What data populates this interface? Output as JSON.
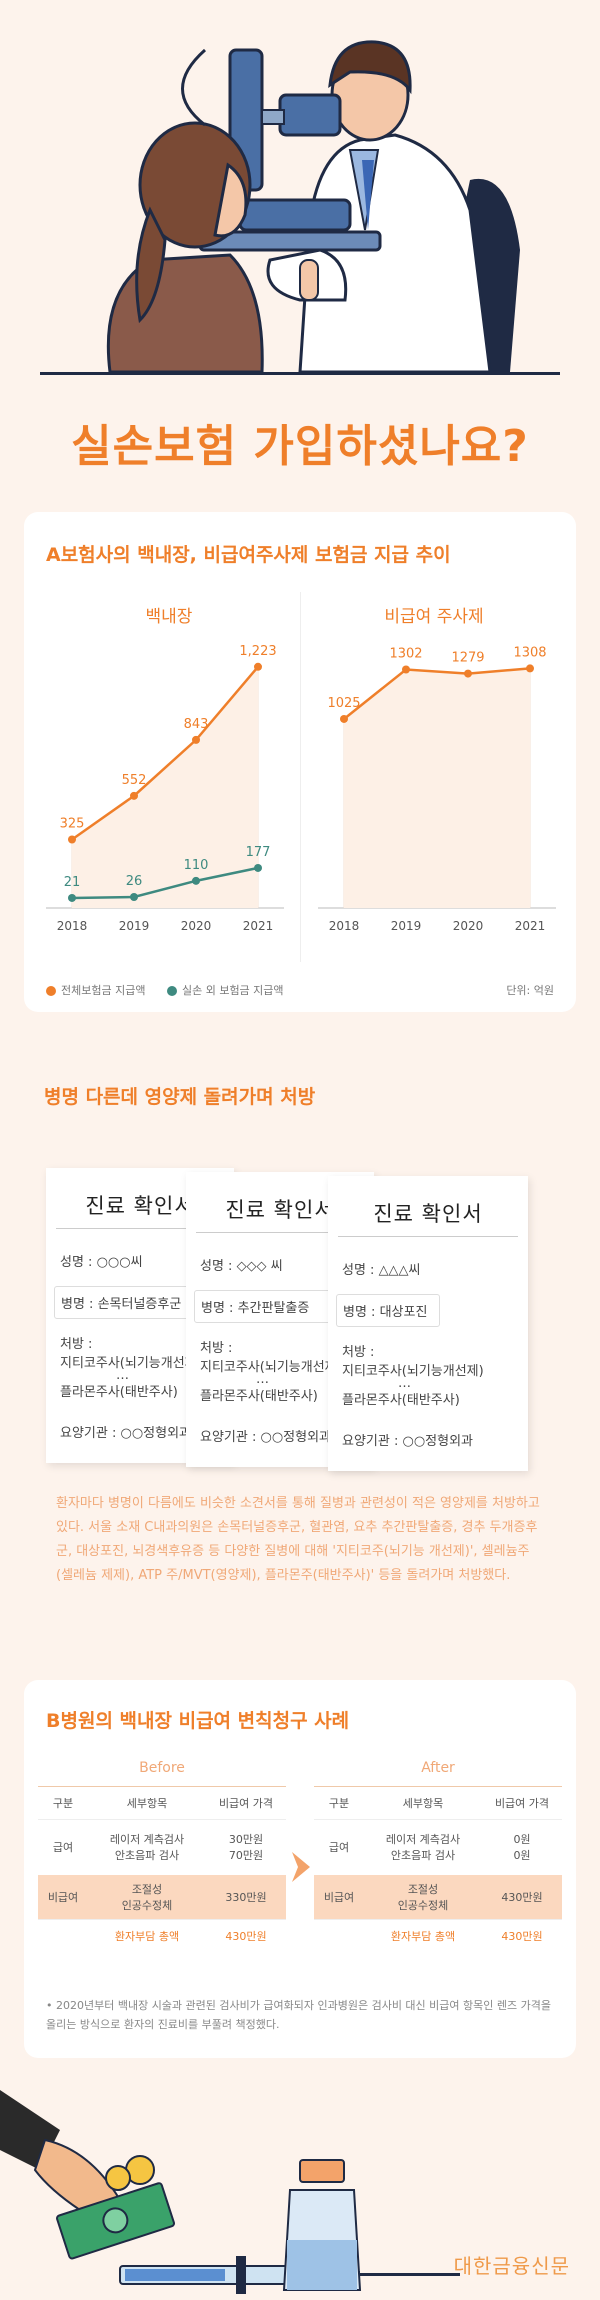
{
  "headline": "실손보험 가입하셨나요?",
  "card1": {
    "title": "A보험사의 백내장, 비급여주사제 보험금 지급 추이",
    "legend": {
      "total": "전체보험금 지급액",
      "other": "실손 외 보험금 지급액",
      "unit": "단위: 억원"
    }
  },
  "chart_data": [
    {
      "type": "line",
      "title": "백내장",
      "x": [
        "2018",
        "2019",
        "2020",
        "2021"
      ],
      "series": [
        {
          "name": "전체보험금 지급액",
          "values": [
            325,
            552,
            843,
            1223
          ],
          "labels": [
            "325",
            "552",
            "843",
            "1,223"
          ],
          "color": "#ef7f2a"
        },
        {
          "name": "실손 외 보험금 지급액",
          "values": [
            21,
            26,
            110,
            177
          ],
          "labels": [
            "21",
            "26",
            "110",
            "177"
          ],
          "color": "#3e8a80"
        }
      ],
      "ylim": [
        0,
        1300
      ],
      "grid": false
    },
    {
      "type": "line",
      "title": "비급여 주사제",
      "x": [
        "2018",
        "2019",
        "2020",
        "2021"
      ],
      "series": [
        {
          "name": "전체보험금 지급액",
          "values": [
            1025,
            1302,
            1279,
            1308
          ],
          "labels": [
            "1025",
            "1302",
            "1279",
            "1308"
          ],
          "color": "#ef7f2a"
        }
      ],
      "ylim": [
        0,
        1400
      ],
      "grid": false
    }
  ],
  "sec2": {
    "title": "병명 다른데 영양제 돌려가며 처방",
    "docs": [
      {
        "title": "진료 확인서",
        "name": "성명 : ○○○씨",
        "diag": "병명 : 손목터널증후군",
        "rx": "처방 :",
        "rx1": "지티코주사(뇌기능개선제)",
        "dots": "…",
        "rx2": "플라몬주사(태반주사)",
        "inst": "요양기관 : ○○정형외과"
      },
      {
        "title": "진료 확인서",
        "name": "성명 : ◇◇◇ 씨",
        "diag": "병명 : 추간판탈출증",
        "rx": "처방 :",
        "rx1": "지티코주사(뇌기능개선제)",
        "dots": "…",
        "rx2": "플라몬주사(태반주사)",
        "inst": "요양기관 : ○○정형외과"
      },
      {
        "title": "진료 확인서",
        "name": "성명 : △△△씨",
        "diag": "병명 : 대상포진",
        "rx": "처방 :",
        "rx1": "지티코주사(뇌기능개선제)",
        "dots": "…",
        "rx2": "플라몬주사(태반주사)",
        "inst": "요양기관 : ○○정형외과"
      }
    ],
    "paragraph": "환자마다 병명이 다름에도 비슷한 소견서를 통해 질병과 관련성이 적은 영양제를 처방하고 있다. 서울 소재 C내과의원은 손목터널증후군, 혈관염, 요추 추간판탈출증, 경추 두개증후군, 대상포진, 뇌경색후유증 등 다양한 질병에 대해 '지티코주(뇌기능 개선제)', 셀레늄주(셀레늄 제제), ATP 주/MVT(영양제), 플라몬주(태반주사)' 등을 돌려가며 처방했다."
  },
  "card3": {
    "title": "B병원의 백내장 비급여 변칙청구 사례",
    "before": {
      "label": "Before",
      "headers": [
        "구분",
        "세부항목",
        "비급여 가격"
      ],
      "rows": [
        {
          "cat": "급여",
          "items": [
            "레이저 계측검사",
            "안초음파 검사"
          ],
          "prices": [
            "30만원",
            "70만원"
          ]
        },
        {
          "cat": "비급여",
          "items": [
            "조절성",
            "인공수정체"
          ],
          "prices": [
            "330만원"
          ]
        }
      ],
      "total_label": "환자부담 총액",
      "total": "430만원"
    },
    "after": {
      "label": "After",
      "headers": [
        "구분",
        "세부항목",
        "비급여 가격"
      ],
      "rows": [
        {
          "cat": "급여",
          "items": [
            "레이저 계측검사",
            "안초음파 검사"
          ],
          "prices": [
            "0원",
            "0원"
          ]
        },
        {
          "cat": "비급여",
          "items": [
            "조절성",
            "인공수정체"
          ],
          "prices": [
            "430만원"
          ]
        }
      ],
      "total_label": "환자부담 총액",
      "total": "430만원"
    },
    "footnote": "• 2020년부터 백내장 시술과 관련된 검사비가 급여화되자 인과병원은 검사비 대신 비급여 항목인 렌즈 가격을 올리는 방식으로 환자의 진료비를 부풀려 책정했다."
  },
  "brand": "대한금융신문"
}
